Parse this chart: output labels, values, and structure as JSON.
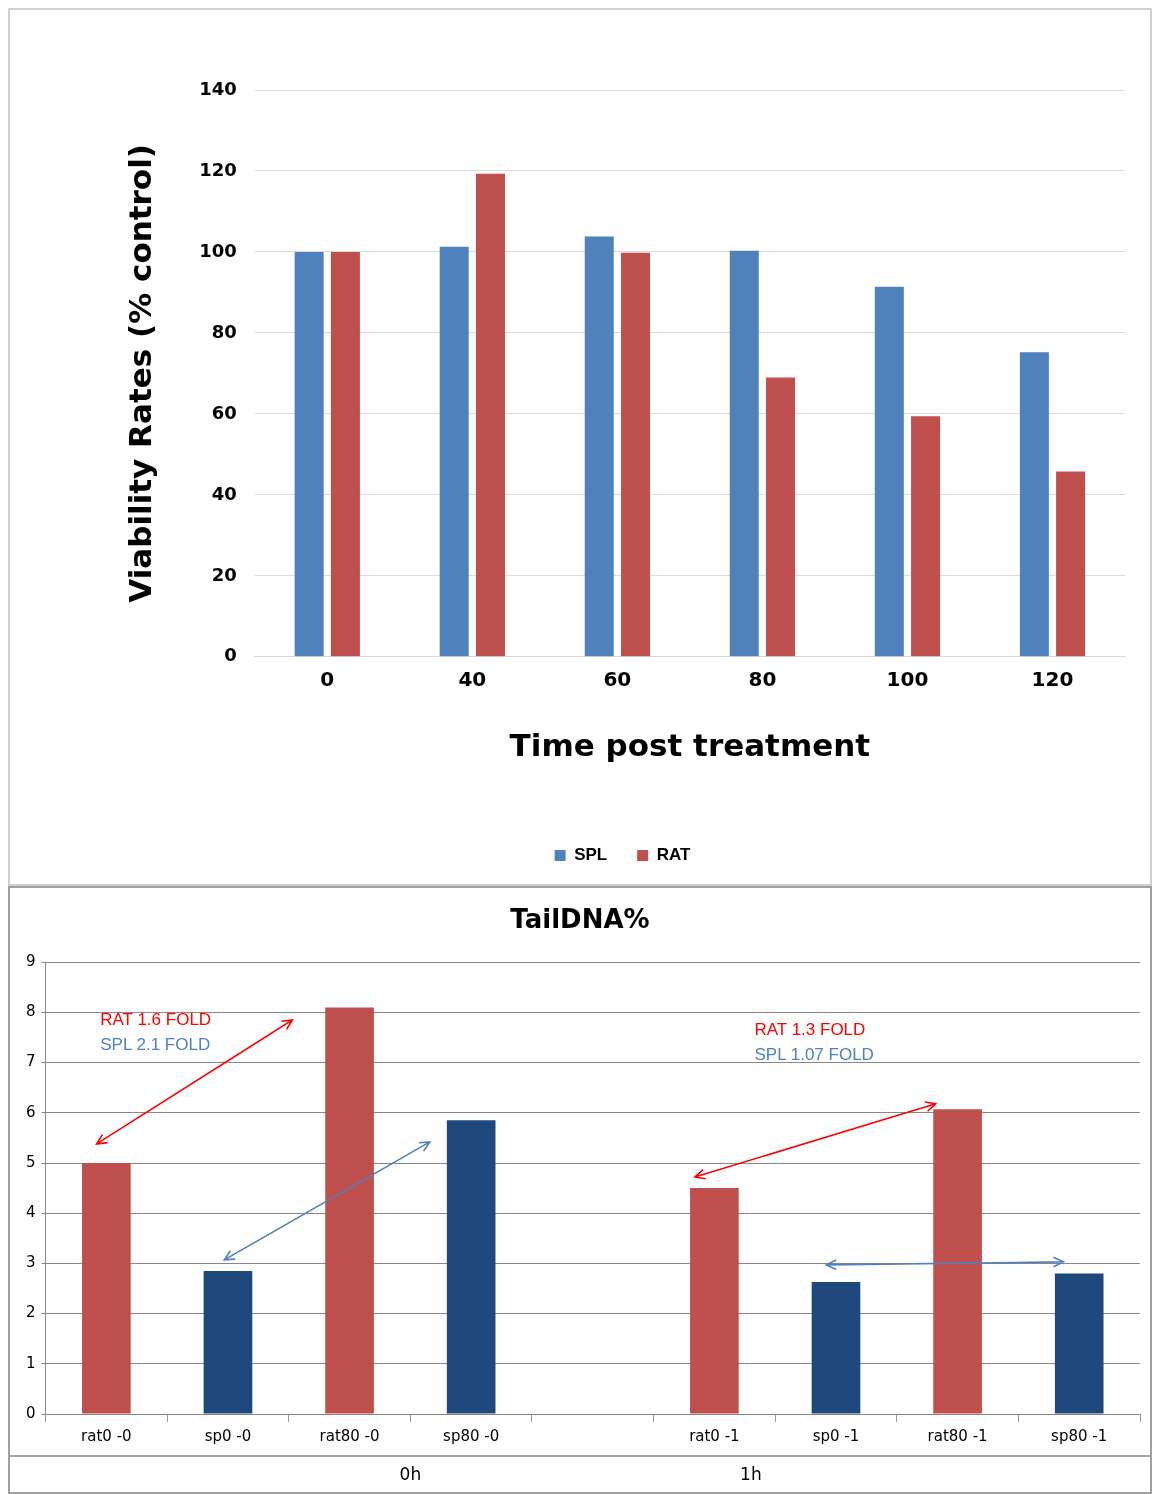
{
  "chart_data": [
    {
      "type": "bar",
      "xlabel": "Time post treatment",
      "ylabel": "Viability Rates (% control)",
      "categories": [
        "0",
        "40",
        "60",
        "80",
        "100",
        "120"
      ],
      "series": [
        {
          "name": "SPL",
          "color": "#4f81bd",
          "values": [
            100,
            101.3,
            103.8,
            100.3,
            91.4,
            75.2
          ]
        },
        {
          "name": "RAT",
          "color": "#c0504d",
          "values": [
            100,
            119.3,
            99.8,
            69,
            59.4,
            45.8
          ]
        }
      ],
      "ylim": [
        0,
        140
      ],
      "yticks": [
        0,
        20,
        40,
        60,
        80,
        100,
        120,
        140
      ],
      "grid": "y",
      "legend": "bottom"
    },
    {
      "type": "bar",
      "title": "TailDNA%",
      "categories": [
        "rat0 -0",
        "sp0 -0",
        "rat80 -0",
        "sp80 -0",
        null,
        "rat0 -1",
        "sp0 -1",
        "rat80 -1",
        "sp80 -1"
      ],
      "values": [
        5.0,
        2.85,
        8.1,
        5.85,
        null,
        4.5,
        2.63,
        6.07,
        2.8
      ],
      "colors": [
        "#c0504d",
        "#1f497d",
        "#c0504d",
        "#1f497d",
        "#c0504d",
        "#c0504d",
        "#1f497d",
        "#c0504d",
        "#1f497d"
      ],
      "ylim": [
        0,
        9
      ],
      "yticks": [
        0,
        1,
        2,
        3,
        4,
        5,
        6,
        7,
        8,
        9
      ],
      "grid": "y",
      "annotations": [
        "RAT 1.6 FOLD",
        "SPL 2.1 FOLD",
        "RAT 1.3 FOLD",
        "SPL 1.07 FOLD",
        "0h",
        "1h"
      ]
    }
  ]
}
